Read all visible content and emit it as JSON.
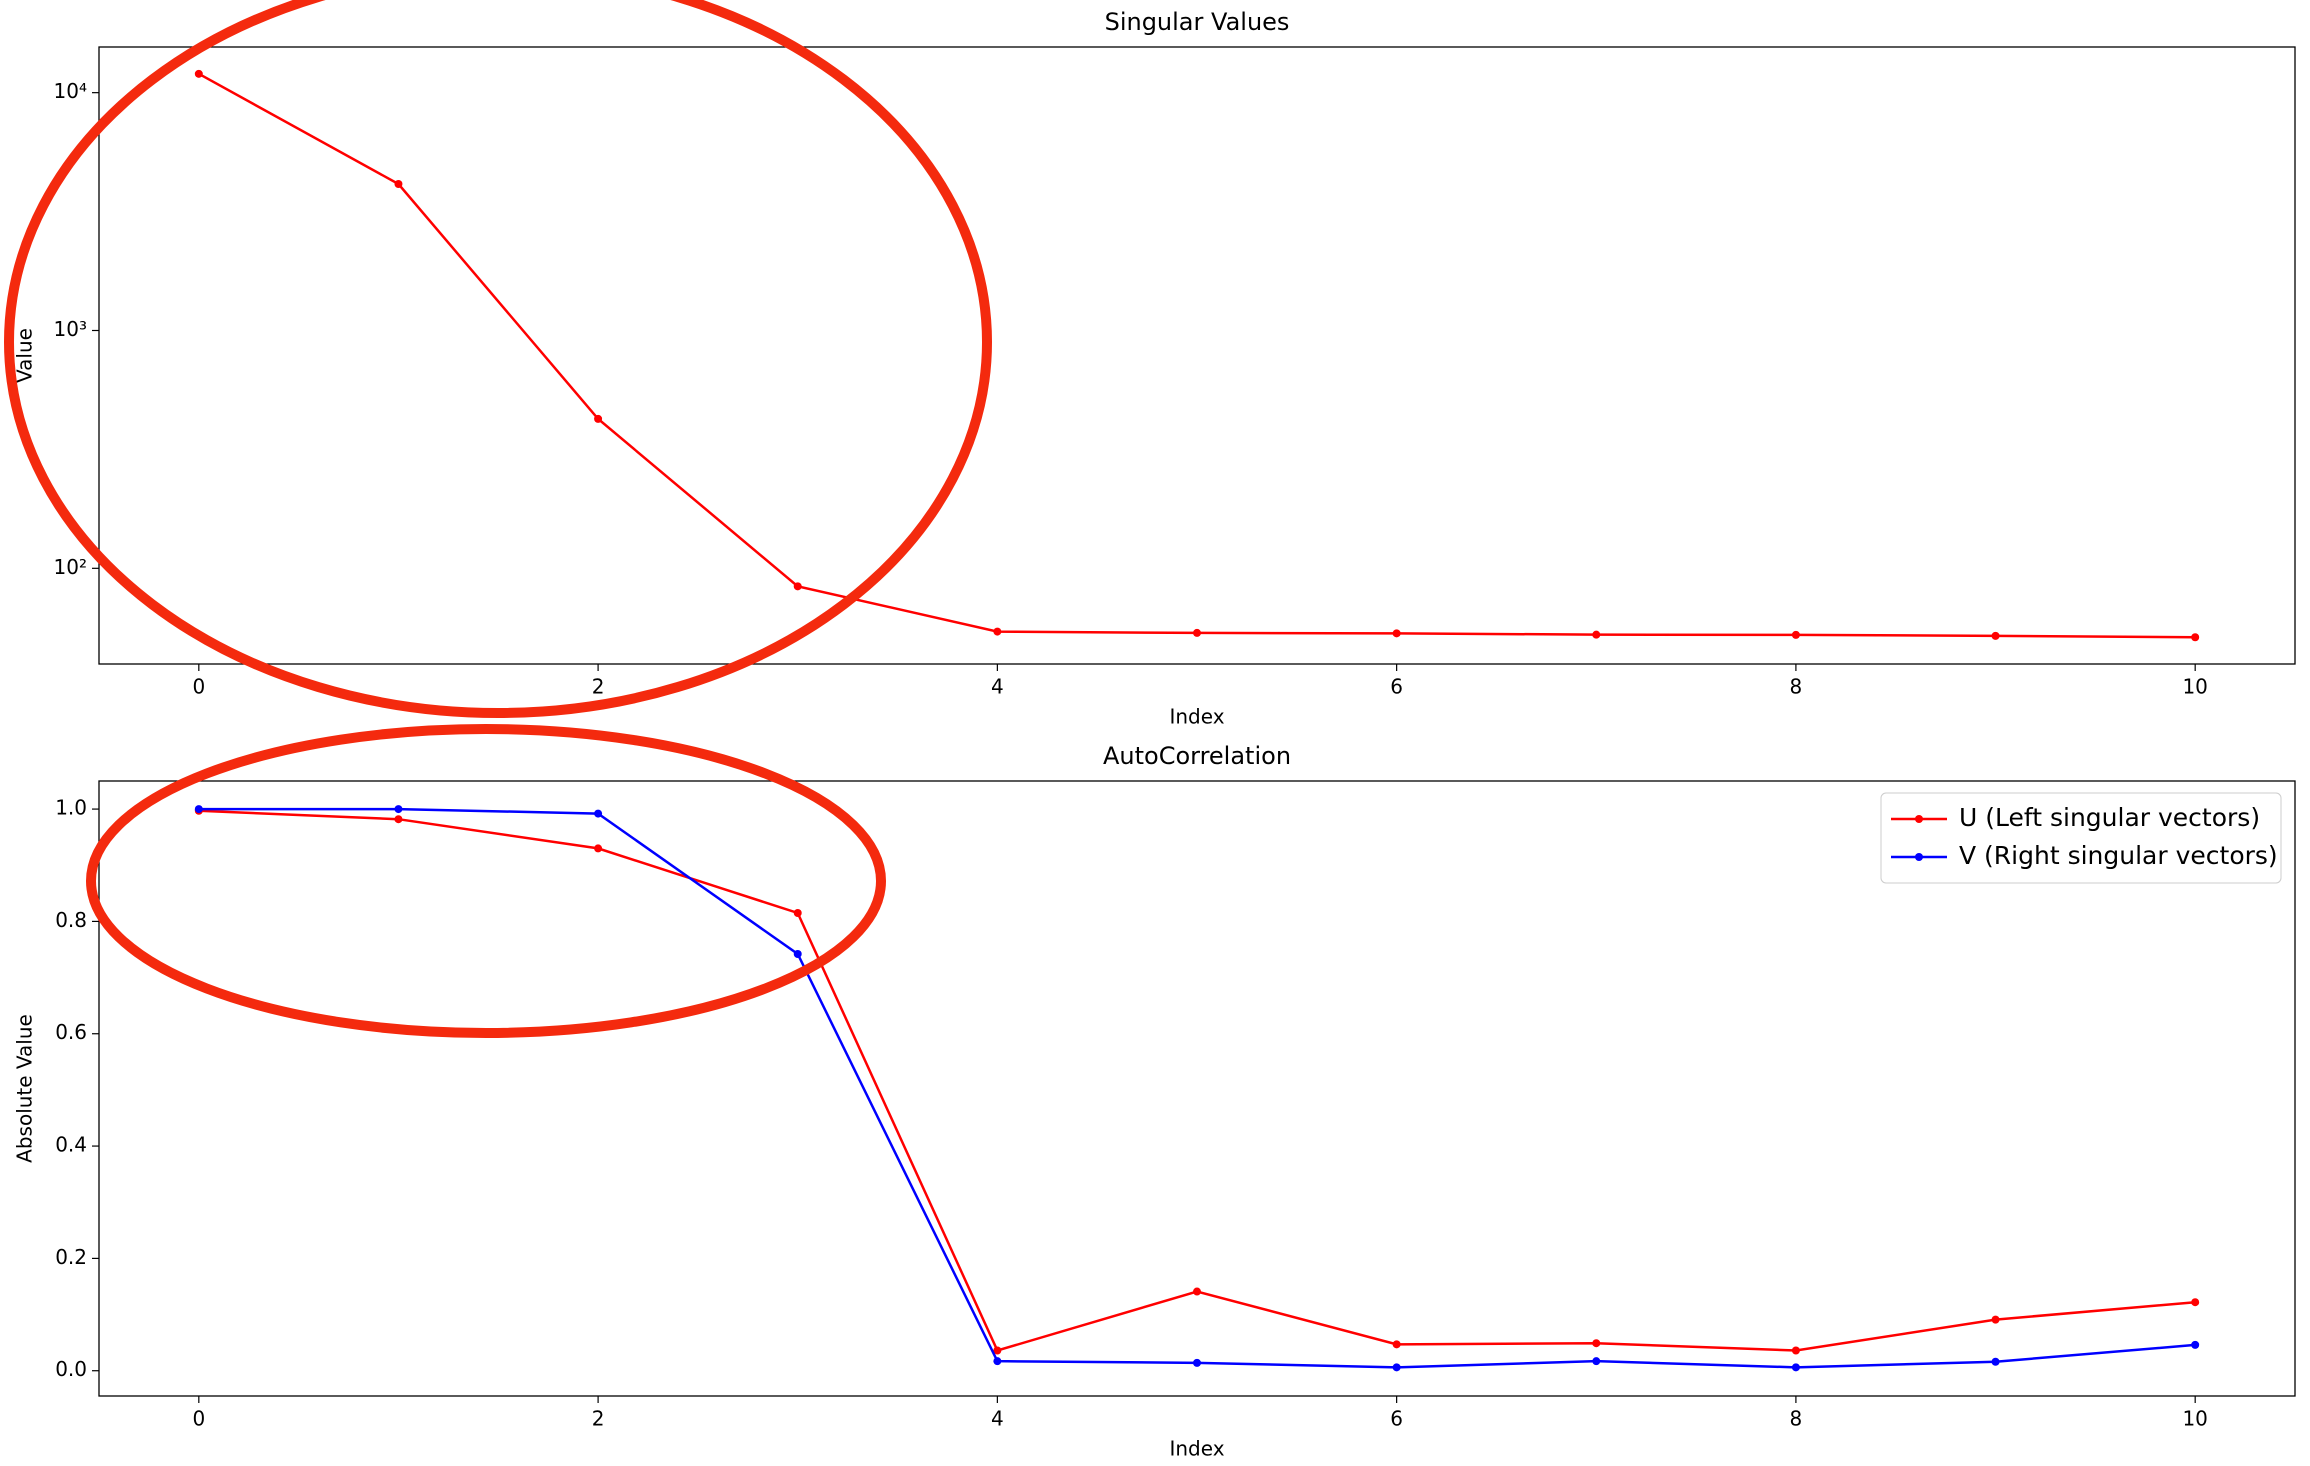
{
  "chart_data": [
    {
      "type": "line",
      "title": "Singular Values",
      "x_label": "Index",
      "y_label": "Value",
      "y_scale": "log",
      "x": [
        0,
        1,
        2,
        3,
        4,
        5,
        6,
        7,
        8,
        9,
        10
      ],
      "series": [
        {
          "name": null,
          "color": "#ff0000",
          "values": [
            12000,
            4130,
            425,
            84,
            54.2,
            53.5,
            53.3,
            52.6,
            52.5,
            52,
            51.3
          ]
        }
      ],
      "xlim": [
        -0.5,
        10.5
      ],
      "xticks": [
        0,
        2,
        4,
        6,
        8,
        10
      ],
      "ylim": [
        39.6,
        15560
      ],
      "yticks": [
        {
          "value": 100,
          "label": "10²"
        },
        {
          "value": 1000,
          "label": "10³"
        },
        {
          "value": 10000,
          "label": "10⁴"
        }
      ],
      "grid": false
    },
    {
      "type": "line",
      "title": "AutoCorrelation",
      "x_label": "Index",
      "y_label": "Absolute Value",
      "x": [
        0,
        1,
        2,
        3,
        4,
        5,
        6,
        7,
        8,
        9,
        10
      ],
      "series": [
        {
          "name": "U (Left singular vectors)",
          "color": "#ff0000",
          "values": [
            0.997,
            0.982,
            0.93,
            0.815,
            0.036,
            0.141,
            0.047,
            0.049,
            0.036,
            0.091,
            0.122
          ]
        },
        {
          "name": "V (Right singular vectors)",
          "color": "#0000ff",
          "values": [
            1.0,
            1.0,
            0.992,
            0.742,
            0.017,
            0.014,
            0.006,
            0.017,
            0.006,
            0.016,
            0.046
          ]
        }
      ],
      "xlim": [
        -0.5,
        10.5
      ],
      "xticks": [
        0,
        2,
        4,
        6,
        8,
        10
      ],
      "ylim": [
        -0.045,
        1.05
      ],
      "yticks": [
        {
          "value": 0,
          "label": "0.0"
        },
        {
          "value": 0.2,
          "label": "0.2"
        },
        {
          "value": 0.4,
          "label": "0.4"
        },
        {
          "value": 0.6,
          "label": "0.6"
        },
        {
          "value": 0.8,
          "label": "0.8"
        },
        {
          "value": 1,
          "label": "1.0"
        }
      ],
      "grid": false,
      "legend": "upper right"
    }
  ]
}
